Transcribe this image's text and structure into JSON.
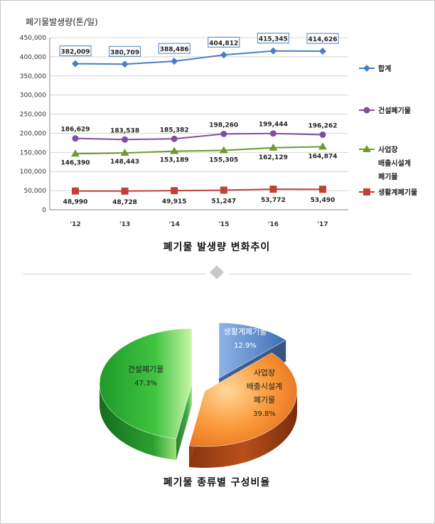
{
  "line_chart": {
    "unit_label": "폐기물발생량(톤/일)",
    "caption": "폐기물 발생량 변화추이"
  },
  "pie_chart": {
    "caption": "폐기물 종류별 구성비율"
  },
  "chart_data": [
    {
      "type": "line",
      "title": "",
      "ylabel": "폐기물발생량(톤/일)",
      "xlabel": "",
      "categories": [
        "'12",
        "'13",
        "'14",
        "'15",
        "'16",
        "'17"
      ],
      "ylim": [
        0,
        450000
      ],
      "yticks": [
        "0",
        "50,000",
        "100,000",
        "150,000",
        "200,000",
        "250,000",
        "300,000",
        "350,000",
        "400,000",
        "450,000"
      ],
      "grid": true,
      "legend": "right",
      "series": [
        {
          "name": "합계",
          "color": "#4a7ec4",
          "marker": "diamond",
          "values": [
            382009,
            380709,
            388486,
            404812,
            415345,
            414626
          ],
          "labels": [
            "382,009",
            "380,709",
            "388,486",
            "404,812",
            "415,345",
            "414,626"
          ]
        },
        {
          "name": "건설폐기물",
          "color": "#7f4f9e",
          "marker": "circle",
          "values": [
            186629,
            183538,
            185382,
            198260,
            199444,
            196262
          ],
          "labels": [
            "186,629",
            "183,538",
            "185,382",
            "198,260",
            "199,444",
            "196,262"
          ]
        },
        {
          "name": "사업장 배출시설계 폐기물",
          "color": "#6f9a2e",
          "marker": "triangle",
          "values": [
            146390,
            148443,
            153189,
            155305,
            162129,
            164874
          ],
          "labels": [
            "146,390",
            "148,443",
            "153,189",
            "155,305",
            "162,129",
            "164,874"
          ]
        },
        {
          "name": "생활계폐기물",
          "color": "#c0403a",
          "marker": "square",
          "values": [
            48990,
            48728,
            49915,
            51247,
            53772,
            53490
          ],
          "labels": [
            "48,990",
            "48,728",
            "49,915",
            "51,247",
            "53,772",
            "53,490"
          ]
        }
      ]
    },
    {
      "type": "pie",
      "title": "",
      "slices": [
        {
          "label": "생활계폐기물",
          "value": 12.9,
          "pct": "12.9%",
          "color": "#5a86c8"
        },
        {
          "label": "사업장 배출시설계 폐기물",
          "value": 39.8,
          "pct": "39.8%",
          "color": "#f07a1a"
        },
        {
          "label": "건설폐기물",
          "value": 47.3,
          "pct": "47.3%",
          "color": "#2fb02f"
        }
      ]
    }
  ]
}
